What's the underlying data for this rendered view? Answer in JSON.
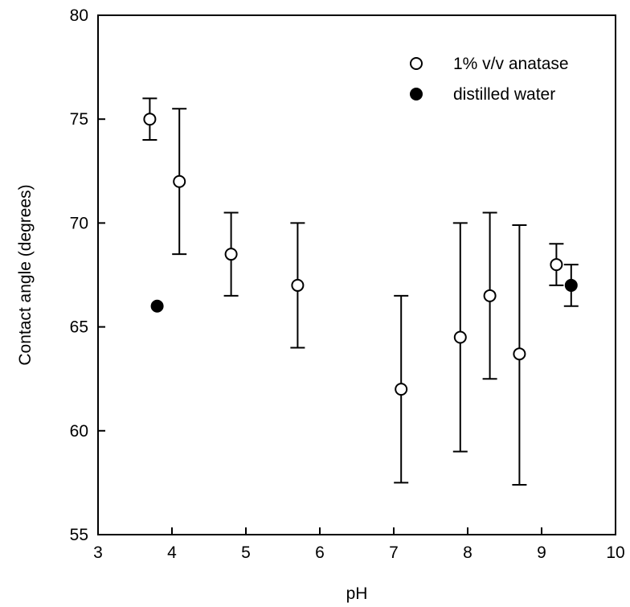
{
  "chart_data": {
    "type": "scatter",
    "xlabel": "pH",
    "ylabel": "Contact angle (degrees)",
    "xlim": [
      3,
      10
    ],
    "ylim": [
      55,
      80
    ],
    "xticks": [
      3,
      4,
      5,
      6,
      7,
      8,
      9,
      10
    ],
    "yticks": [
      55,
      60,
      65,
      70,
      75,
      80
    ],
    "grid": false,
    "legend_position": "top-right",
    "series": [
      {
        "name": "1% v/v anatase",
        "marker": "open-circle",
        "color": "#000000",
        "points": [
          {
            "x": 3.7,
            "y": 75.0,
            "err_low": 74.0,
            "err_high": 76.0
          },
          {
            "x": 4.1,
            "y": 72.0,
            "err_low": 68.5,
            "err_high": 75.5
          },
          {
            "x": 4.8,
            "y": 68.5,
            "err_low": 66.5,
            "err_high": 70.5
          },
          {
            "x": 5.7,
            "y": 67.0,
            "err_low": 64.0,
            "err_high": 70.0
          },
          {
            "x": 7.1,
            "y": 62.0,
            "err_low": 57.5,
            "err_high": 66.5
          },
          {
            "x": 7.9,
            "y": 64.5,
            "err_low": 59.0,
            "err_high": 70.0
          },
          {
            "x": 8.3,
            "y": 66.5,
            "err_low": 62.5,
            "err_high": 70.5
          },
          {
            "x": 8.7,
            "y": 63.7,
            "err_low": 57.4,
            "err_high": 69.9
          },
          {
            "x": 9.2,
            "y": 68.0,
            "err_low": 67.0,
            "err_high": 69.0
          }
        ]
      },
      {
        "name": "distilled water",
        "marker": "filled-circle",
        "color": "#000000",
        "points": [
          {
            "x": 3.8,
            "y": 66.0
          },
          {
            "x": 9.4,
            "y": 67.0,
            "err_low": 66.0,
            "err_high": 68.0
          }
        ]
      }
    ]
  }
}
